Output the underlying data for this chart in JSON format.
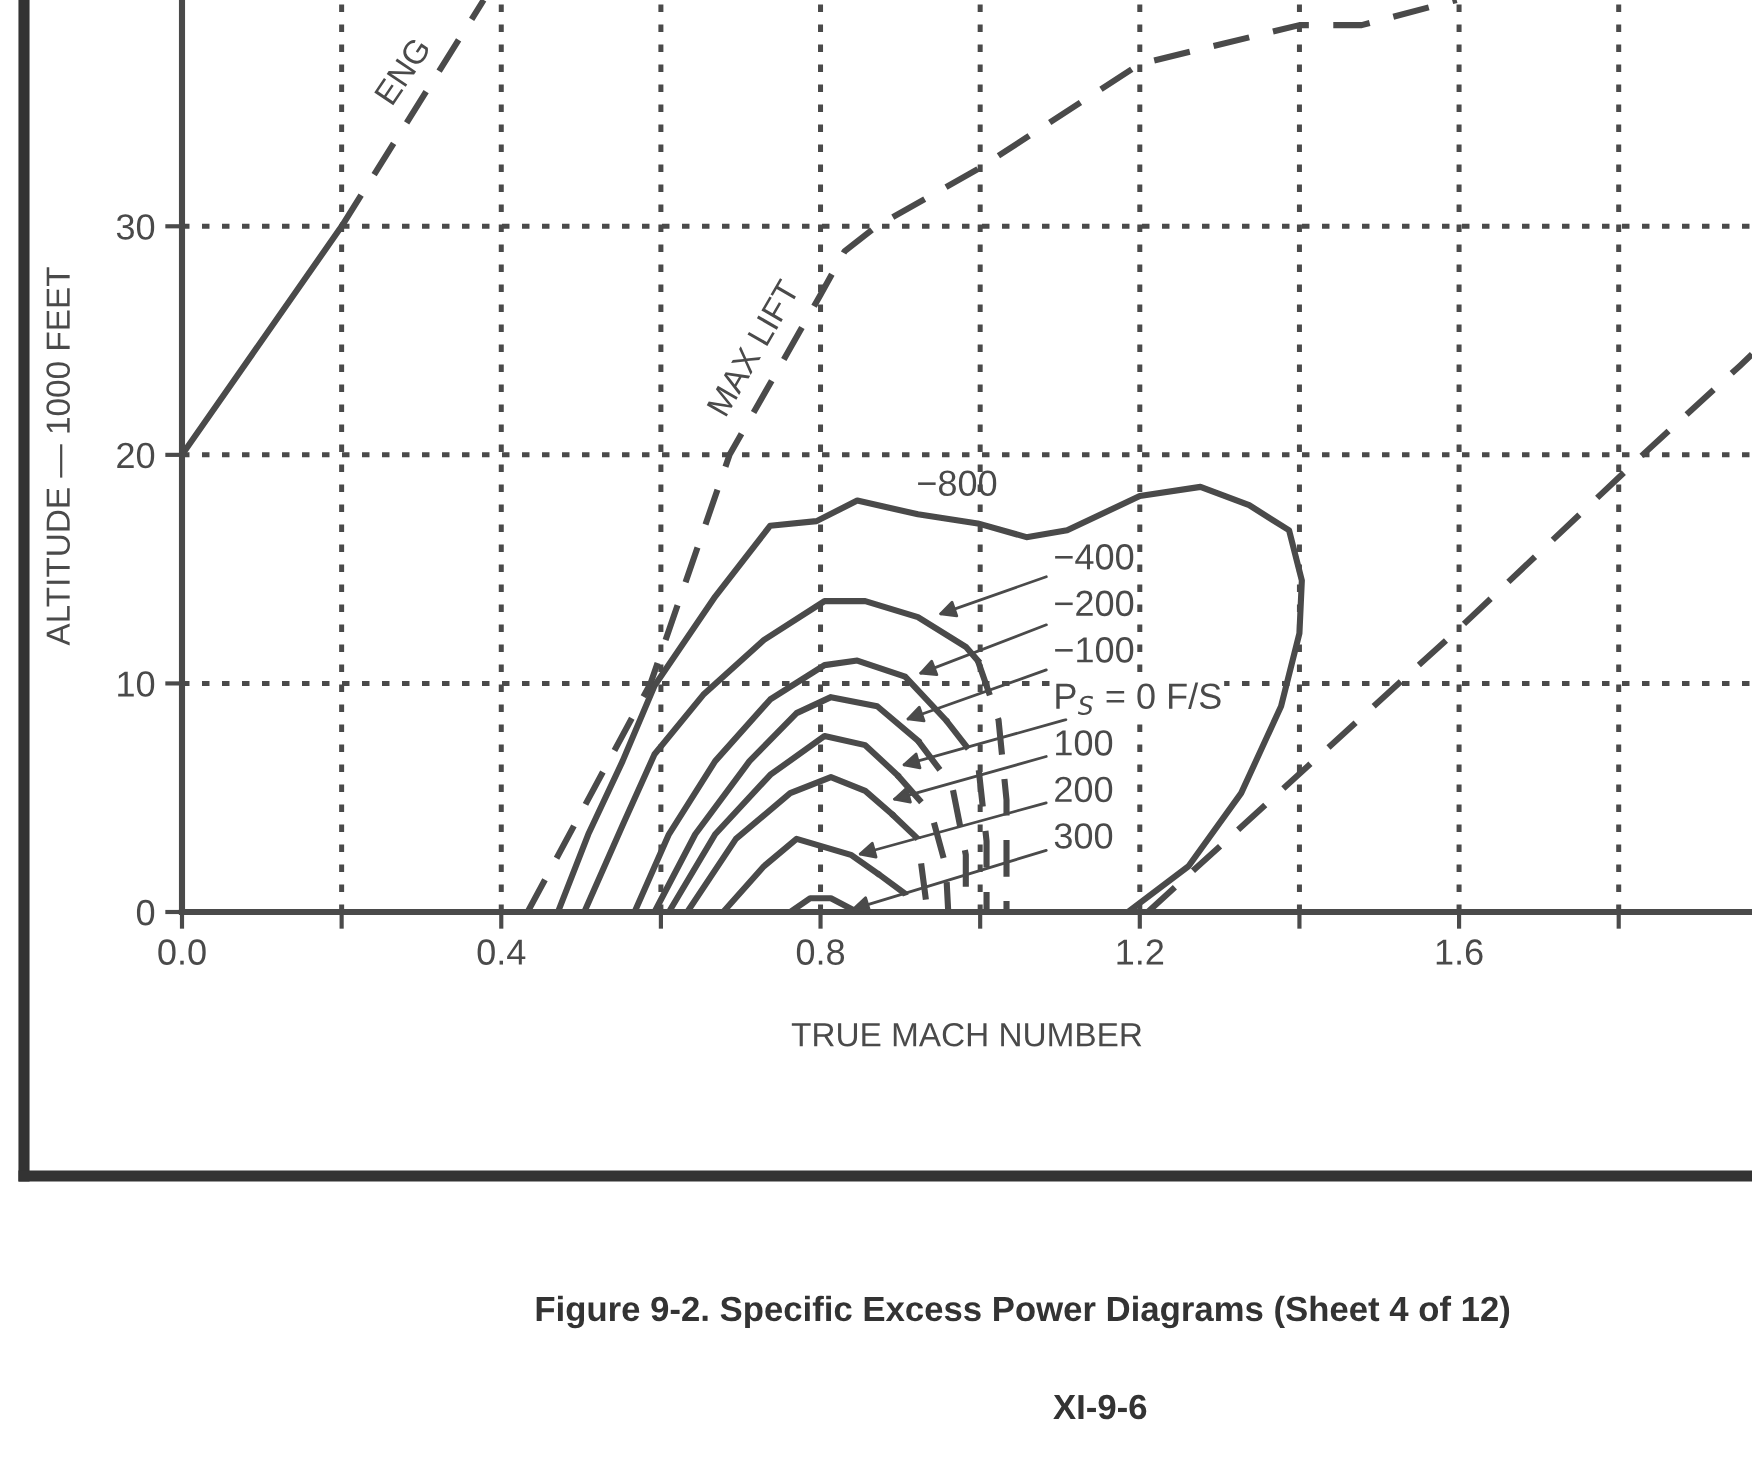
{
  "chart_data": {
    "type": "line",
    "xlabel": "TRUE MACH NUMBER",
    "ylabel": "ALTITUDE — 1000 FEET",
    "xlim": [
      0,
      1.967
    ],
    "ylim": [
      0,
      39.9
    ],
    "xticks": [
      {
        "value": 0,
        "label": "0.0"
      },
      {
        "value": 0.2,
        "label": null
      },
      0.4,
      {
        "value": 0.6,
        "label": null
      },
      0.8,
      {
        "value": 1.0,
        "label": null
      },
      1.2,
      {
        "value": 1.4,
        "label": null
      },
      1.6,
      {
        "value": 1.8,
        "label": null
      }
    ],
    "yticks": [
      0,
      10,
      20,
      30
    ],
    "grid": true,
    "marker": "none",
    "series": [
      {
        "color": "#4a4a4a",
        "line_style": "solid",
        "x": [
          0,
          0.2
        ],
        "values": [
          20,
          30
        ]
      },
      {
        "color": "#4a4a4a",
        "line_style": "dashed",
        "x": [
          0.2,
          0.378
        ],
        "values": [
          30,
          39.9
        ]
      },
      {
        "color": "#4a4a4a",
        "line_style": "dashed",
        "x": [
          0.433,
          0.587,
          0.686,
          0.8,
          0.83,
          0.87,
          0.997,
          1.2,
          1.4,
          1.478,
          1.597
        ],
        "values": [
          0,
          10,
          20,
          27.0,
          28.9,
          30.0,
          32.5,
          37.1,
          38.8,
          38.8,
          39.9
        ]
      },
      {
        "color": "#4a4a4a",
        "line_style": "dashed",
        "x": [
          1.21,
          1.603,
          1.83,
          1.952,
          1.967
        ],
        "values": [
          0,
          12.5,
          20.0,
          23.9,
          24.4
        ]
      },
      {
        "color": "#4a4a4a",
        "line_style": "solid",
        "x": [
          0.471,
          0.509,
          0.552,
          0.592,
          0.668,
          0.737,
          0.795,
          0.846,
          0.922,
          0.997,
          1.058,
          1.109,
          1.2,
          1.276,
          1.337,
          1.387,
          1.403,
          1.4,
          1.377,
          1.327,
          1.261,
          1.185
        ],
        "values": [
          0,
          3.4,
          6.6,
          9.9,
          13.8,
          16.9,
          17.1,
          18.0,
          17.4,
          17.0,
          16.4,
          16.7,
          18.2,
          18.6,
          17.8,
          16.7,
          14.5,
          12.2,
          9.0,
          5.2,
          2.0,
          0
        ]
      },
      {
        "color": "#4a4a4a",
        "line_style": "solid",
        "x": [
          0.504,
          0.552,
          0.592,
          0.653,
          0.729,
          0.805,
          0.856,
          0.922,
          0.982,
          0.997
        ],
        "values": [
          0,
          3.8,
          6.9,
          9.5,
          11.9,
          13.6,
          13.6,
          12.9,
          11.6,
          11.0
        ]
      },
      {
        "color": "#4a4a4a",
        "line_style": "dashed",
        "x": [
          0.997,
          1.023,
          1.033,
          1.033
        ],
        "values": [
          11.0,
          8.4,
          4.9,
          0
        ]
      },
      {
        "color": "#4a4a4a",
        "line_style": "solid",
        "x": [
          0.567,
          0.61,
          0.668,
          0.737,
          0.805,
          0.846,
          0.906,
          0.957
        ],
        "values": [
          0,
          3.4,
          6.6,
          9.3,
          10.8,
          11.0,
          10.3,
          8.4
        ]
      },
      {
        "color": "#4a4a4a",
        "line_style": "dashed",
        "x": [
          0.957,
          0.997,
          1.008,
          1.008
        ],
        "values": [
          8.4,
          6.6,
          3.1,
          0
        ]
      },
      {
        "color": "#4a4a4a",
        "line_style": "solid",
        "x": [
          0.592,
          0.643,
          0.711,
          0.77,
          0.813,
          0.871,
          0.922
        ],
        "values": [
          0,
          3.4,
          6.6,
          8.7,
          9.4,
          9.0,
          7.5
        ]
      },
      {
        "color": "#4a4a4a",
        "line_style": "dashed",
        "x": [
          0.922,
          0.965,
          0.982,
          0.982
        ],
        "values": [
          7.5,
          5.5,
          2.5,
          0
        ]
      },
      {
        "color": "#4a4a4a",
        "line_style": "solid",
        "x": [
          0.61,
          0.668,
          0.737,
          0.805,
          0.856,
          0.896
        ],
        "values": [
          0,
          3.4,
          6.0,
          7.7,
          7.3,
          6.0
        ]
      },
      {
        "color": "#4a4a4a",
        "line_style": "dashed",
        "x": [
          0.896,
          0.939,
          0.957,
          0.96
        ],
        "values": [
          6.0,
          4.3,
          2.0,
          0
        ]
      },
      {
        "color": "#4a4a4a",
        "line_style": "solid",
        "x": [
          0.633,
          0.694,
          0.762,
          0.813,
          0.856,
          0.889
        ],
        "values": [
          0,
          3.2,
          5.2,
          5.9,
          5.3,
          4.3
        ]
      },
      {
        "color": "#4a4a4a",
        "line_style": "dashed",
        "x": [
          0.889,
          0.922,
          0.934
        ],
        "values": [
          4.3,
          3.2,
          0
        ]
      },
      {
        "color": "#4a4a4a",
        "line_style": "solid",
        "x": [
          0.678,
          0.729,
          0.77,
          0.838,
          0.871
        ],
        "values": [
          0,
          2.0,
          3.2,
          2.5,
          1.7
        ]
      },
      {
        "color": "#4a4a4a",
        "line_style": "dashed",
        "x": [
          0.871,
          0.906,
          0.914
        ],
        "values": [
          1.7,
          0.8,
          0
        ]
      },
      {
        "color": "#4a4a4a",
        "line_style": "solid",
        "x": [
          0.762,
          0.787,
          0.813,
          0.846
        ],
        "values": [
          0,
          0.6,
          0.6,
          0
        ]
      }
    ],
    "annotations": [
      {
        "text": "ENG",
        "x": 0.3,
        "y": 35.5
      },
      {
        "text": "MAX LIFT",
        "x": 0.76,
        "y": 24.6
      },
      {
        "text": "−800",
        "x": 0.92,
        "y": 17.4
      },
      {
        "text": "−400",
        "x": 0.947,
        "y": 13.0
      },
      {
        "text": "−200",
        "x": 0.922,
        "y": 10.4
      },
      {
        "text": "−100",
        "x": 0.906,
        "y": 8.4
      },
      {
        "text": "P$_{S}$ = 0 F/S",
        "x": 0.901,
        "y": 6.4
      },
      {
        "text": "100",
        "x": 0.889,
        "y": 4.9
      },
      {
        "text": "200",
        "x": 0.846,
        "y": 2.5
      },
      {
        "text": "300",
        "x": 0.838,
        "y": 0.1
      },
      "Figure 9-2. Specific Excess Power Diagrams (Sheet 4 of 12)",
      "XI-9-6"
    ]
  }
}
